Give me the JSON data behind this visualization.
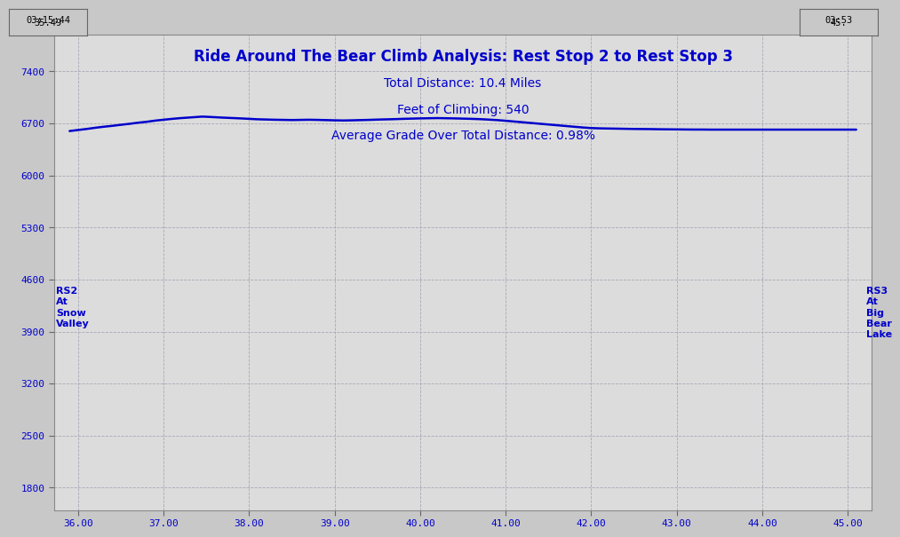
{
  "title_line1": "Ride Around The Bear Climb Analysis: Rest Stop 2 to Rest Stop 3",
  "title_line2": "Total Distance: 10.4 Miles",
  "title_line3": "Feet of Climbing: 540",
  "title_line4": "Average Grade Over Total Distance: 0.98%",
  "top_left_line1": "03:15:44",
  "top_left_line2": "35.49",
  "top_right_line1": "03:53",
  "top_right_line2": "45.",
  "xlabel_values": [
    36,
    37,
    38,
    39,
    40,
    41,
    42,
    43,
    44,
    45
  ],
  "xlim": [
    35.72,
    45.28
  ],
  "ylim": [
    1500,
    7900
  ],
  "yticks": [
    1800,
    2500,
    3200,
    3900,
    4600,
    5300,
    6000,
    6700,
    7400
  ],
  "bg_color": "#c8c8c8",
  "plot_bg_color": "#dcdcdc",
  "line_color": "#0000cc",
  "title_color": "#0000cc",
  "annotation_color": "#0000cc",
  "grid_color": "#a8a8b8",
  "rs2_label": "RS2\nAt\nSnow\nValley",
  "rs3_label": "RS3\nAt\nBig\nBear\nLake",
  "elevation_x": [
    35.9,
    36.0,
    36.1,
    36.2,
    36.3,
    36.4,
    36.5,
    36.6,
    36.7,
    36.8,
    36.9,
    37.0,
    37.1,
    37.2,
    37.3,
    37.4,
    37.45,
    37.5,
    37.6,
    37.7,
    37.8,
    37.9,
    38.0,
    38.1,
    38.2,
    38.3,
    38.4,
    38.5,
    38.6,
    38.7,
    38.8,
    38.9,
    39.0,
    39.1,
    39.2,
    39.3,
    39.4,
    39.5,
    39.6,
    39.7,
    39.8,
    39.9,
    40.0,
    40.1,
    40.2,
    40.3,
    40.4,
    40.5,
    40.6,
    40.7,
    40.8,
    40.9,
    41.0,
    41.1,
    41.2,
    41.3,
    41.4,
    41.5,
    41.6,
    41.7,
    41.8,
    41.9,
    42.0,
    42.1,
    42.2,
    42.3,
    42.4,
    42.5,
    42.6,
    42.7,
    42.8,
    42.9,
    43.0,
    43.1,
    43.2,
    43.3,
    43.4,
    43.5,
    43.6,
    43.7,
    43.8,
    43.9,
    44.0,
    44.1,
    44.2,
    44.3,
    44.4,
    44.5,
    44.6,
    44.7,
    44.8,
    44.9,
    45.0,
    45.1
  ],
  "elevation_y": [
    6598,
    6612,
    6626,
    6642,
    6656,
    6668,
    6682,
    6695,
    6710,
    6722,
    6738,
    6750,
    6762,
    6772,
    6780,
    6788,
    6792,
    6790,
    6784,
    6778,
    6773,
    6768,
    6762,
    6756,
    6753,
    6750,
    6748,
    6746,
    6748,
    6750,
    6748,
    6745,
    6742,
    6740,
    6742,
    6745,
    6748,
    6752,
    6755,
    6758,
    6762,
    6765,
    6768,
    6770,
    6772,
    6770,
    6768,
    6765,
    6762,
    6758,
    6752,
    6745,
    6736,
    6726,
    6716,
    6706,
    6696,
    6686,
    6676,
    6666,
    6656,
    6646,
    6638,
    6634,
    6632,
    6630,
    6628,
    6626,
    6625,
    6624,
    6622,
    6621,
    6620,
    6619,
    6618,
    6618,
    6617,
    6617,
    6617,
    6617,
    6617,
    6617,
    6617,
    6617,
    6617,
    6617,
    6617,
    6617,
    6617,
    6617,
    6617,
    6617,
    6617,
    6617
  ]
}
